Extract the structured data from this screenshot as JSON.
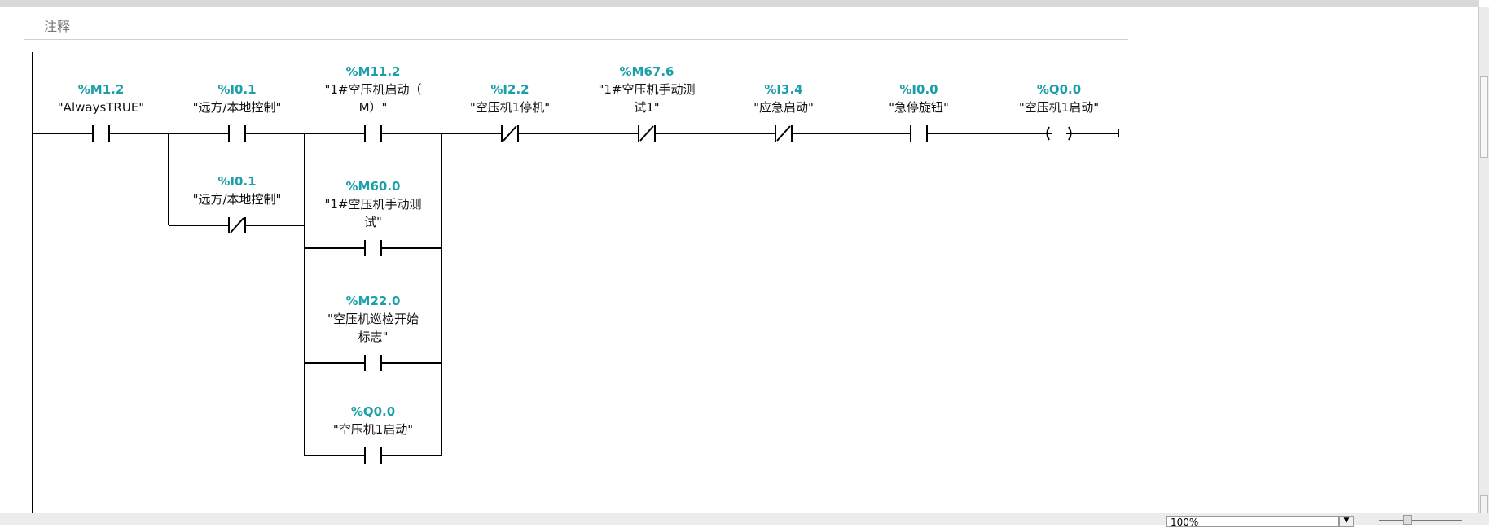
{
  "comment": {
    "placeholder": "注释"
  },
  "network": {
    "series": [
      {
        "address": "%M1.2",
        "name": [
          "\"AlwaysTRUE\""
        ],
        "type": "NO"
      },
      {
        "address": "%I0.1",
        "name": [
          "\"远方/本地控制\""
        ],
        "type": "NO"
      },
      {
        "address": "%M11.2",
        "name": [
          "\"1#空压机启动（",
          "M）\""
        ],
        "type": "NO"
      },
      {
        "address": "%I2.2",
        "name": [
          "\"空压机1停机\""
        ],
        "type": "NC"
      },
      {
        "address": "%M67.6",
        "name": [
          "\"1#空压机手动测",
          "试1\""
        ],
        "type": "NC"
      },
      {
        "address": "%I3.4",
        "name": [
          "\"应急启动\""
        ],
        "type": "NC"
      },
      {
        "address": "%I0.0",
        "name": [
          "\"急停旋钮\""
        ],
        "type": "NO"
      },
      {
        "address": "%Q0.0",
        "name": [
          "\"空压机1启动\""
        ],
        "type": "coil"
      }
    ],
    "branch1": [
      {
        "address": "%I0.1",
        "name": [
          "\"远方/本地控制\""
        ],
        "type": "NC"
      }
    ],
    "branch2": [
      {
        "address": "%M60.0",
        "name": [
          "\"1#空压机手动测",
          "试\""
        ],
        "type": "NO"
      },
      {
        "address": "%M22.0",
        "name": [
          "\"空压机巡检开始",
          "标志\""
        ],
        "type": "NO"
      },
      {
        "address": "%Q0.0",
        "name": [
          "\"空压机1启动\""
        ],
        "type": "NO"
      }
    ]
  },
  "statusbar": {
    "zoom_value": "100%",
    "zoom_dropdown_icon": "▼"
  },
  "colors": {
    "address": "#1aa0a8"
  }
}
